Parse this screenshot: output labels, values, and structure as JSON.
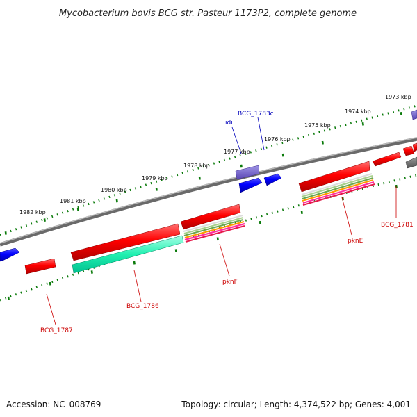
{
  "title": "Mycobacterium bovis BCG str. Pasteur 1173P2, complete genome",
  "footer": {
    "accession": "Accession: NC_008769",
    "summary": "Topology: circular; Length: 4,374,522 bp; Genes: 4,001"
  },
  "kbp_ticks": [
    "1973 kbp",
    "1974 kbp",
    "1975 kbp",
    "1976 kbp",
    "1977 kbp",
    "1978 kbp",
    "1979 kbp",
    "1980 kbp",
    "1981 kbp",
    "1982 kbp"
  ],
  "genes": {
    "bcg1783c": "BCG_1783c",
    "idi": "idi",
    "bcg1781": "BCG_1781",
    "pknE": "pknE",
    "pknF": "pknF",
    "bcg1786": "BCG_1786",
    "bcg1787": "BCG_1787"
  },
  "colors": {
    "forward_gene": "#e00000",
    "reverse_gene": "#1414e6",
    "blue_label": "#0000bb",
    "red_label": "#cc0000",
    "backbone": "#777777",
    "tick": "#0a7a0a"
  }
}
